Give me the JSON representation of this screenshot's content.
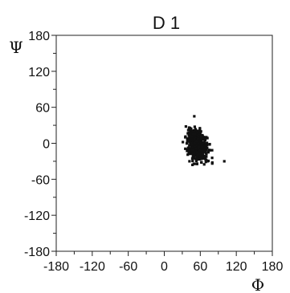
{
  "chart_data": {
    "type": "scatter",
    "title": "D 1",
    "xlabel": "Φ",
    "ylabel": "Ψ",
    "xlim": [
      -180,
      180
    ],
    "ylim": [
      -180,
      180
    ],
    "grid": false,
    "x_ticks": [
      -180,
      -120,
      -60,
      0,
      60,
      120,
      180
    ],
    "x_tick_labels": [
      "-180",
      "-120",
      "-60",
      "0",
      "60",
      "120",
      "180"
    ],
    "y_ticks": [
      180,
      120,
      60,
      0,
      -60,
      -120,
      -180
    ],
    "y_tick_labels": [
      "180",
      "120",
      "60",
      "0",
      "-60",
      "-120",
      "-180"
    ],
    "marker_color": "#111111",
    "cluster": {
      "center": [
        55,
        -3
      ],
      "spread": [
        8,
        12
      ],
      "count": 520
    },
    "outliers": [
      [
        50,
        45
      ],
      [
        36,
        28
      ],
      [
        40,
        22
      ],
      [
        42,
        -30
      ],
      [
        70,
        -28
      ],
      [
        100,
        -30
      ],
      [
        62,
        -32
      ],
      [
        47,
        -36
      ],
      [
        35,
        10
      ]
    ]
  }
}
